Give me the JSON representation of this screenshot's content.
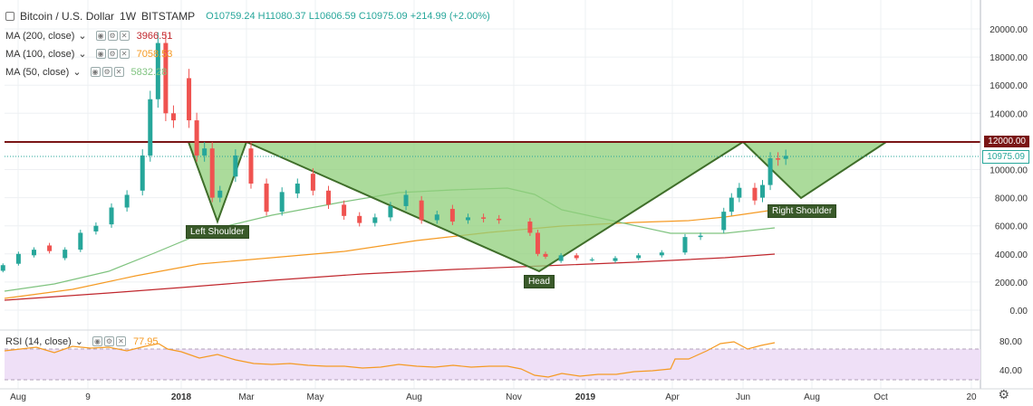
{
  "header": {
    "title": "Bitcoin / U.S. Dollar",
    "interval": "1W",
    "exchange": "BITSTAMP",
    "open": "O10759.24",
    "high": "H11080.37",
    "low": "L10606.59",
    "close": "C10975.09",
    "change": "+214.99 (+2.00%)"
  },
  "indicators": [
    {
      "label": "MA (200, close)",
      "value": "3966.51",
      "color": "#c0272d"
    },
    {
      "label": "MA (100, close)",
      "value": "7058.53",
      "color": "#f59a23"
    },
    {
      "label": "MA (50, close)",
      "value": "5832.28",
      "color": "#7fc37f"
    }
  ],
  "rsi": {
    "label": "RSI (14, close)",
    "value": "77.95",
    "levels": [
      "80.00",
      "40.00"
    ]
  },
  "price_axis": [
    "20000.00",
    "18000.00",
    "16000.00",
    "14000.00",
    "12000.00",
    "10000.00",
    "8000.00",
    "6000.00",
    "4000.00",
    "2000.00",
    "0.00"
  ],
  "price_tags": {
    "resistance": "12000.00",
    "last": "10975.09"
  },
  "time_axis": [
    "Aug",
    "9",
    "2018",
    "Mar",
    "May",
    "Aug",
    "Nov",
    "2019",
    "Apr",
    "Jun",
    "Aug",
    "Oct",
    "20"
  ],
  "annotations": {
    "left": "Left Shoulder",
    "head": "Head",
    "right": "Right Shoulder"
  },
  "colors": {
    "up": "#26a69a",
    "down": "#ef5350",
    "pattern": "#8fcf7a",
    "pattern_edge": "#3f6e2a",
    "resistance": "#7a1515",
    "rsi_line": "#f59a23",
    "rsi_band": "#efe0f7"
  },
  "chart_data": {
    "type": "candlestick",
    "title": "Bitcoin / U.S. Dollar",
    "interval": "1W",
    "ylim": [
      0,
      21000
    ],
    "resistance": 12000,
    "pattern": "inverse head and shoulders",
    "pattern_points": [
      {
        "date": "2017-11-27",
        "price": 12000
      },
      {
        "date": "2018-02-05",
        "price": 6300
      },
      {
        "date": "2018-03-05",
        "price": 12000
      },
      {
        "date": "2018-11-26",
        "price": 2800
      },
      {
        "date": "2019-06-03",
        "price": 12000
      },
      {
        "date": "2019-07-22",
        "price": 7800
      },
      {
        "date": "2019-10-07",
        "price": 12000
      }
    ],
    "candles": [
      {
        "date": "2017-07-10",
        "o": 2700,
        "c": 2900
      },
      {
        "date": "2017-07-24",
        "o": 2800,
        "c": 3200
      },
      {
        "date": "2017-08-07",
        "o": 3300,
        "c": 4000
      },
      {
        "date": "2017-08-21",
        "o": 3900,
        "c": 4300
      },
      {
        "date": "2017-09-04",
        "o": 4600,
        "c": 4200
      },
      {
        "date": "2017-09-18",
        "o": 3700,
        "c": 4300
      },
      {
        "date": "2017-10-02",
        "o": 4300,
        "c": 5500
      },
      {
        "date": "2017-10-16",
        "o": 5600,
        "c": 6000
      },
      {
        "date": "2017-10-30",
        "o": 6100,
        "c": 7300
      },
      {
        "date": "2017-11-13",
        "o": 7300,
        "c": 8200
      },
      {
        "date": "2017-11-27",
        "o": 8500,
        "c": 11000
      },
      {
        "date": "2017-12-04",
        "o": 11000,
        "c": 15000
      },
      {
        "date": "2017-12-11",
        "o": 15000,
        "c": 19000
      },
      {
        "date": "2017-12-18",
        "o": 19000,
        "c": 14000
      },
      {
        "date": "2017-12-25",
        "o": 14000,
        "c": 13500
      },
      {
        "date": "2018-01-08",
        "o": 16500,
        "c": 13500
      },
      {
        "date": "2018-01-15",
        "o": 13500,
        "c": 11000
      },
      {
        "date": "2018-01-22",
        "o": 11000,
        "c": 11500
      },
      {
        "date": "2018-01-29",
        "o": 11500,
        "c": 8000
      },
      {
        "date": "2018-02-05",
        "o": 8000,
        "c": 8500
      },
      {
        "date": "2018-02-19",
        "o": 9500,
        "c": 11000
      },
      {
        "date": "2018-03-05",
        "o": 11500,
        "c": 9000
      },
      {
        "date": "2018-03-19",
        "o": 9000,
        "c": 7000
      },
      {
        "date": "2018-04-02",
        "o": 7000,
        "c": 8400
      },
      {
        "date": "2018-04-16",
        "o": 8300,
        "c": 9000
      },
      {
        "date": "2018-04-30",
        "o": 9700,
        "c": 8500
      },
      {
        "date": "2018-05-14",
        "o": 8500,
        "c": 7500
      },
      {
        "date": "2018-05-28",
        "o": 7500,
        "c": 6700
      },
      {
        "date": "2018-06-11",
        "o": 6700,
        "c": 6200
      },
      {
        "date": "2018-06-25",
        "o": 6200,
        "c": 6600
      },
      {
        "date": "2018-07-09",
        "o": 6600,
        "c": 7400
      },
      {
        "date": "2018-07-23",
        "o": 7400,
        "c": 8200
      },
      {
        "date": "2018-08-06",
        "o": 7800,
        "c": 6400
      },
      {
        "date": "2018-08-20",
        "o": 6400,
        "c": 6800
      },
      {
        "date": "2018-09-03",
        "o": 7200,
        "c": 6300
      },
      {
        "date": "2018-09-17",
        "o": 6400,
        "c": 6600
      },
      {
        "date": "2018-10-01",
        "o": 6600,
        "c": 6500
      },
      {
        "date": "2018-10-15",
        "o": 6500,
        "c": 6400
      },
      {
        "date": "2018-11-12",
        "o": 6300,
        "c": 5500
      },
      {
        "date": "2018-11-19",
        "o": 5500,
        "c": 4000
      },
      {
        "date": "2018-11-26",
        "o": 4000,
        "c": 3800
      },
      {
        "date": "2018-12-10",
        "o": 3500,
        "c": 3900
      },
      {
        "date": "2018-12-24",
        "o": 3900,
        "c": 3700
      },
      {
        "date": "2019-01-07",
        "o": 3600,
        "c": 3600
      },
      {
        "date": "2019-01-28",
        "o": 3500,
        "c": 3700
      },
      {
        "date": "2019-02-18",
        "o": 3700,
        "c": 3900
      },
      {
        "date": "2019-03-11",
        "o": 3900,
        "c": 4100
      },
      {
        "date": "2019-04-01",
        "o": 4100,
        "c": 5200
      },
      {
        "date": "2019-04-15",
        "o": 5200,
        "c": 5300
      },
      {
        "date": "2019-05-06",
        "o": 5700,
        "c": 7000
      },
      {
        "date": "2019-05-13",
        "o": 7000,
        "c": 8000
      },
      {
        "date": "2019-05-20",
        "o": 8000,
        "c": 8700
      },
      {
        "date": "2019-06-03",
        "o": 8700,
        "c": 7800
      },
      {
        "date": "2019-06-10",
        "o": 8000,
        "c": 8900
      },
      {
        "date": "2019-06-17",
        "o": 8900,
        "c": 10800
      },
      {
        "date": "2019-06-24",
        "o": 10800,
        "c": 10700
      },
      {
        "date": "2019-07-01",
        "o": 10759,
        "c": 10975
      }
    ]
  }
}
